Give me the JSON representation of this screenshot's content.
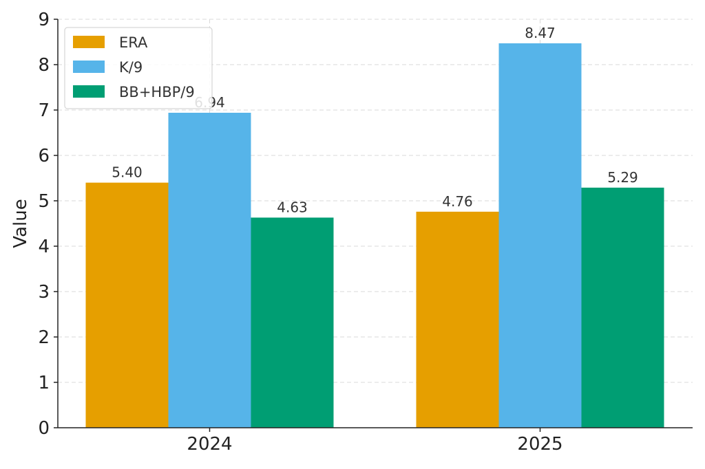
{
  "chart_data": {
    "type": "bar",
    "title": "",
    "xlabel": "",
    "ylabel": "Value",
    "ylim": [
      0,
      9
    ],
    "yticks": [
      0,
      1,
      2,
      3,
      4,
      5,
      6,
      7,
      8,
      9
    ],
    "categories": [
      "2024",
      "2025"
    ],
    "series": [
      {
        "name": "ERA",
        "color": "#E69F00",
        "values": [
          5.4,
          4.76
        ],
        "labels": [
          "5.40",
          "4.76"
        ]
      },
      {
        "name": "K/9",
        "color": "#56B4E9",
        "values": [
          6.94,
          8.47
        ],
        "labels": [
          "6.94",
          "8.47"
        ]
      },
      {
        "name": "BB+HBP/9",
        "color": "#009E73",
        "values": [
          4.63,
          5.29
        ],
        "labels": [
          "4.63",
          "5.29"
        ]
      }
    ],
    "grid": true,
    "legend_position": "top-left"
  }
}
